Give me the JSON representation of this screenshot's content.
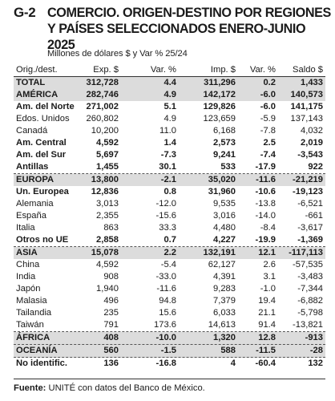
{
  "header": {
    "code": "G-2",
    "title": "COMERCIO. ORIGEN-DESTINO POR REGIONES Y PAÍSES SELECCIONADOS ENERO-JUNIO 2025",
    "subtitle": "Millones de dólares $ y Var % 25/24"
  },
  "chart_data": {
    "type": "table",
    "columns": [
      "Orig./dest.",
      "Exp. $",
      "Var. %",
      "Imp. $",
      "Var. %",
      "Saldo $"
    ],
    "rows": [
      {
        "name": "TOTAL",
        "exp": "312,728",
        "exp_var": "4.4",
        "imp": "311,296",
        "imp_var": "0.2",
        "saldo": "1,433",
        "bold": true,
        "shade": true
      },
      {
        "name": "AMÉRICA",
        "exp": "282,746",
        "exp_var": "4.9",
        "imp": "142,172",
        "imp_var": "-6.0",
        "saldo": "140,573",
        "bold": true,
        "shade": true
      },
      {
        "name": "Am. del Norte",
        "exp": "271,002",
        "exp_var": "5.1",
        "imp": "129,826",
        "imp_var": "-6.0",
        "saldo": "141,175",
        "bold": true,
        "shade": false
      },
      {
        "name": "Edos. Unidos",
        "exp": "260,802",
        "exp_var": "4.9",
        "imp": "123,659",
        "imp_var": "-5.9",
        "saldo": "137,143",
        "bold": false,
        "shade": false
      },
      {
        "name": "Canadá",
        "exp": "10,200",
        "exp_var": "11.0",
        "imp": "6,168",
        "imp_var": "-7.8",
        "saldo": "4,032",
        "bold": false,
        "shade": false
      },
      {
        "name": "Am. Central",
        "exp": "4,592",
        "exp_var": "1.4",
        "imp": "2,573",
        "imp_var": "2.5",
        "saldo": "2,019",
        "bold": true,
        "shade": false
      },
      {
        "name": "Am. del Sur",
        "exp": "5,697",
        "exp_var": "-7.3",
        "imp": "9,241",
        "imp_var": "-7.4",
        "saldo": "-3,543",
        "bold": true,
        "shade": false
      },
      {
        "name": "Antillas",
        "exp": "1,455",
        "exp_var": "30.1",
        "imp": "533",
        "imp_var": "-17.9",
        "saldo": "922",
        "bold": true,
        "shade": false,
        "dash": true
      },
      {
        "name": "EUROPA",
        "exp": "13,800",
        "exp_var": "-2.1",
        "imp": "35,020",
        "imp_var": "-11.6",
        "saldo": "-21,219",
        "bold": true,
        "shade": true
      },
      {
        "name": "Un. Europea",
        "exp": "12,836",
        "exp_var": "0.8",
        "imp": "31,960",
        "imp_var": "-10.6",
        "saldo": "-19,123",
        "bold": true,
        "shade": false
      },
      {
        "name": "Alemania",
        "exp": "3,013",
        "exp_var": "-12.0",
        "imp": "9,535",
        "imp_var": "-13.8",
        "saldo": "-6,521",
        "bold": false,
        "shade": false
      },
      {
        "name": "España",
        "exp": "2,355",
        "exp_var": "-15.6",
        "imp": "3,016",
        "imp_var": "-14.0",
        "saldo": "-661",
        "bold": false,
        "shade": false
      },
      {
        "name": "Italia",
        "exp": "863",
        "exp_var": "33.3",
        "imp": "4,480",
        "imp_var": "-8.4",
        "saldo": "-3,617",
        "bold": false,
        "shade": false
      },
      {
        "name": "Otros no UE",
        "exp": "2,858",
        "exp_var": "0.7",
        "imp": "4,227",
        "imp_var": "-19.9",
        "saldo": "-1,369",
        "bold": true,
        "shade": false,
        "dash": true
      },
      {
        "name": "ASIA",
        "exp": "15,078",
        "exp_var": "2.2",
        "imp": "132,191",
        "imp_var": "12.1",
        "saldo": "-117,113",
        "bold": true,
        "shade": true
      },
      {
        "name": "China",
        "exp": "4,592",
        "exp_var": "-5.4",
        "imp": "62,127",
        "imp_var": "2.6",
        "saldo": "-57,535",
        "bold": false,
        "shade": false
      },
      {
        "name": "India",
        "exp": "908",
        "exp_var": "-33.0",
        "imp": "4,391",
        "imp_var": "3.1",
        "saldo": "-3,483",
        "bold": false,
        "shade": false
      },
      {
        "name": "Japón",
        "exp": "1,940",
        "exp_var": "-11.6",
        "imp": "9,283",
        "imp_var": "-1.0",
        "saldo": "-7,344",
        "bold": false,
        "shade": false
      },
      {
        "name": "Malasia",
        "exp": "496",
        "exp_var": "94.8",
        "imp": "7,379",
        "imp_var": "19.4",
        "saldo": "-6,882",
        "bold": false,
        "shade": false
      },
      {
        "name": "Tailandia",
        "exp": "235",
        "exp_var": "15.6",
        "imp": "6,033",
        "imp_var": "21.1",
        "saldo": "-5,798",
        "bold": false,
        "shade": false
      },
      {
        "name": "Taiwán",
        "exp": "791",
        "exp_var": "173.6",
        "imp": "14,613",
        "imp_var": "91.4",
        "saldo": "-13,821",
        "bold": false,
        "shade": false,
        "dash": true
      },
      {
        "name": "ÁFRICA",
        "exp": "408",
        "exp_var": "-10.0",
        "imp": "1,320",
        "imp_var": "12.8",
        "saldo": "-913",
        "bold": true,
        "shade": true,
        "dash": true
      },
      {
        "name": "OCEANÍA",
        "exp": "560",
        "exp_var": "-1.5",
        "imp": "588",
        "imp_var": "-11.5",
        "saldo": "-28",
        "bold": true,
        "shade": true,
        "dash": true
      },
      {
        "name": "No identific.",
        "exp": "136",
        "exp_var": "-16.8",
        "imp": "4",
        "imp_var": "-60.4",
        "saldo": "132",
        "bold": true,
        "shade": false
      }
    ]
  },
  "footer": {
    "label": "Fuente:",
    "text": " UNITÉ con datos del Banco de México."
  }
}
